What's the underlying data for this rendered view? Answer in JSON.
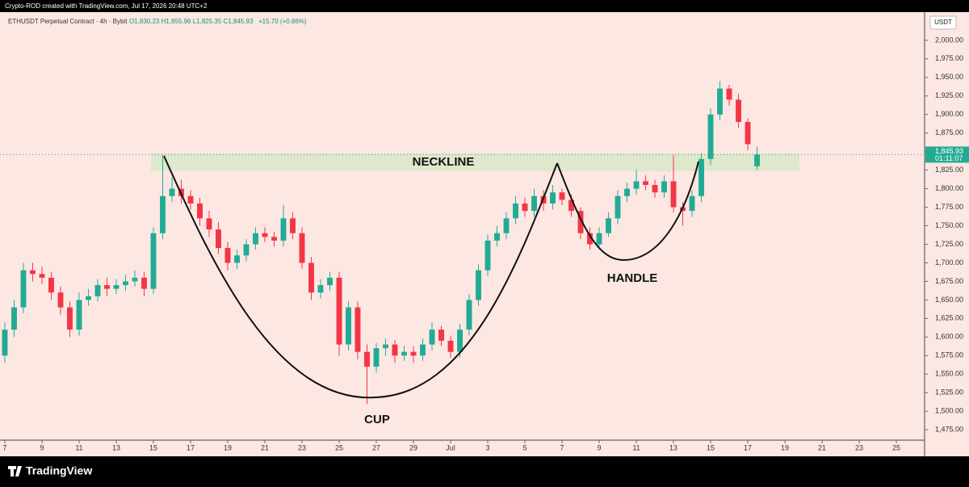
{
  "header": "Crypto-ROD created with TradingView.com, Jul 17, 2026 20:48 UTC+2",
  "footer_logo": "TradingView",
  "chart_data": {
    "type": "candlestick",
    "title": "ETHUSDT Perpetual Contract · 4h · Bybit",
    "ohlc_label": "O1,830.23 H1,855.96 L1,825.35 C1,845.93",
    "change_label": "+15.70 (+0.86%)",
    "currency": "USDT",
    "last_price_label": "1,845.93",
    "countdown": "01:11:07",
    "annotations": [
      "NECKLINE",
      "CUP",
      "HANDLE"
    ],
    "up_color": "#22ab94",
    "down_color": "#f23645",
    "xlim": [
      -0.26,
      49.52
    ],
    "xticks": [
      {
        "value": 0,
        "label": "7"
      },
      {
        "value": 2,
        "label": "9"
      },
      {
        "value": 4,
        "label": "11"
      },
      {
        "value": 6,
        "label": "13"
      },
      {
        "value": 8,
        "label": "15"
      },
      {
        "value": 10,
        "label": "17"
      },
      {
        "value": 12,
        "label": "19"
      },
      {
        "value": 14,
        "label": "21"
      },
      {
        "value": 16,
        "label": "23"
      },
      {
        "value": 18,
        "label": "25"
      },
      {
        "value": 20,
        "label": "27"
      },
      {
        "value": 22,
        "label": "29"
      },
      {
        "value": 24,
        "label": "Jul"
      },
      {
        "value": 26,
        "label": "3"
      },
      {
        "value": 28,
        "label": "5"
      },
      {
        "value": 30,
        "label": "7"
      },
      {
        "value": 32,
        "label": "9"
      },
      {
        "value": 34,
        "label": "11"
      },
      {
        "value": 36,
        "label": "13"
      },
      {
        "value": 38,
        "label": "15"
      },
      {
        "value": 40,
        "label": "17"
      },
      {
        "value": 42,
        "label": "19"
      },
      {
        "value": 44,
        "label": "21"
      },
      {
        "value": 46,
        "label": "23"
      },
      {
        "value": 48,
        "label": "25"
      }
    ],
    "ylim": [
      1461,
      2038
    ],
    "yticks": [
      {
        "value": 1475,
        "label": "1,475.00"
      },
      {
        "value": 1500,
        "label": "1,500.00"
      },
      {
        "value": 1525,
        "label": "1,525.00"
      },
      {
        "value": 1550,
        "label": "1,550.00"
      },
      {
        "value": 1575,
        "label": "1,575.00"
      },
      {
        "value": 1600,
        "label": "1,600.00"
      },
      {
        "value": 1625,
        "label": "1,625.00"
      },
      {
        "value": 1650,
        "label": "1,650.00"
      },
      {
        "value": 1675,
        "label": "1,675.00"
      },
      {
        "value": 1700,
        "label": "1,700.00"
      },
      {
        "value": 1725,
        "label": "1,725.00"
      },
      {
        "value": 1750,
        "label": "1,750.00"
      },
      {
        "value": 1775,
        "label": "1,775.00"
      },
      {
        "value": 1800,
        "label": "1,800.00"
      },
      {
        "value": 1825,
        "label": "1,825.00"
      },
      {
        "value": 1850,
        "label": "1,850.00"
      },
      {
        "value": 1875,
        "label": "1,875.00"
      },
      {
        "value": 1900,
        "label": "1,900.00"
      },
      {
        "value": 1925,
        "label": "1,925.00"
      },
      {
        "value": 1950,
        "label": "1,950.00"
      },
      {
        "value": 1975,
        "label": "1,975.00"
      },
      {
        "value": 2000,
        "label": "2,000.00"
      }
    ],
    "x": [
      0,
      0.5,
      1,
      1.5,
      2,
      2.5,
      3,
      3.5,
      4,
      4.5,
      5,
      5.5,
      6,
      6.5,
      7,
      7.5,
      8,
      8.5,
      9,
      9.5,
      10,
      10.5,
      11,
      11.5,
      12,
      12.5,
      13,
      13.5,
      14,
      14.5,
      15,
      15.5,
      16,
      16.5,
      17,
      17.5,
      18,
      18.5,
      19,
      19.5,
      20,
      20.5,
      21,
      21.5,
      22,
      22.5,
      23,
      23.5,
      24,
      24.5,
      25,
      25.5,
      26,
      26.5,
      27,
      27.5,
      28,
      28.5,
      29,
      29.5,
      30,
      30.5,
      31,
      31.5,
      32,
      32.5,
      33,
      33.5,
      34,
      34.5,
      35,
      35.5,
      36,
      36.5,
      37,
      37.5,
      38,
      38.5,
      39,
      39.5,
      40,
      40.5
    ],
    "open": [
      1575,
      1610,
      1640,
      1690,
      1685,
      1680,
      1660,
      1640,
      1610,
      1650,
      1655,
      1670,
      1665,
      1670,
      1675,
      1680,
      1665,
      1740,
      1790,
      1800,
      1790,
      1780,
      1760,
      1745,
      1720,
      1700,
      1710,
      1725,
      1740,
      1735,
      1730,
      1760,
      1740,
      1700,
      1660,
      1670,
      1680,
      1590,
      1640,
      1580,
      1560,
      1585,
      1590,
      1575,
      1580,
      1575,
      1590,
      1610,
      1595,
      1580,
      1610,
      1650,
      1690,
      1730,
      1740,
      1760,
      1780,
      1770,
      1790,
      1780,
      1795,
      1785,
      1770,
      1740,
      1725,
      1740,
      1760,
      1790,
      1800,
      1810,
      1805,
      1795,
      1810,
      1775,
      1770,
      1790,
      1840,
      1900,
      1935,
      1920,
      1890,
      1830.23
    ],
    "high": [
      1620,
      1650,
      1700,
      1700,
      1695,
      1688,
      1668,
      1648,
      1660,
      1665,
      1678,
      1680,
      1678,
      1684,
      1690,
      1688,
      1748,
      1845,
      1815,
      1812,
      1798,
      1788,
      1770,
      1755,
      1728,
      1718,
      1732,
      1748,
      1748,
      1742,
      1778,
      1768,
      1748,
      1708,
      1678,
      1688,
      1688,
      1648,
      1648,
      1590,
      1592,
      1598,
      1596,
      1588,
      1588,
      1598,
      1620,
      1615,
      1602,
      1618,
      1658,
      1698,
      1738,
      1750,
      1768,
      1790,
      1788,
      1800,
      1798,
      1805,
      1800,
      1792,
      1775,
      1748,
      1748,
      1768,
      1798,
      1808,
      1825,
      1818,
      1812,
      1818,
      1845,
      1782,
      1798,
      1848,
      1908,
      1945,
      1940,
      1928,
      1895,
      1855.96
    ],
    "low": [
      1565,
      1600,
      1632,
      1675,
      1672,
      1650,
      1630,
      1600,
      1602,
      1642,
      1648,
      1655,
      1658,
      1662,
      1668,
      1655,
      1658,
      1732,
      1782,
      1780,
      1772,
      1750,
      1735,
      1712,
      1690,
      1692,
      1702,
      1718,
      1728,
      1722,
      1722,
      1732,
      1692,
      1650,
      1652,
      1662,
      1575,
      1582,
      1570,
      1510,
      1552,
      1575,
      1565,
      1568,
      1565,
      1568,
      1582,
      1588,
      1572,
      1572,
      1602,
      1642,
      1682,
      1722,
      1732,
      1752,
      1762,
      1762,
      1770,
      1772,
      1778,
      1762,
      1732,
      1718,
      1718,
      1735,
      1752,
      1782,
      1792,
      1798,
      1788,
      1788,
      1768,
      1750,
      1762,
      1782,
      1832,
      1892,
      1912,
      1882,
      1852,
      1825.35
    ],
    "close": [
      1610,
      1640,
      1690,
      1685,
      1680,
      1660,
      1640,
      1610,
      1650,
      1655,
      1670,
      1665,
      1670,
      1675,
      1680,
      1665,
      1740,
      1790,
      1800,
      1790,
      1780,
      1760,
      1745,
      1720,
      1700,
      1710,
      1725,
      1740,
      1735,
      1730,
      1760,
      1740,
      1700,
      1660,
      1670,
      1680,
      1590,
      1640,
      1580,
      1560,
      1585,
      1590,
      1575,
      1580,
      1575,
      1590,
      1610,
      1595,
      1580,
      1610,
      1650,
      1690,
      1730,
      1740,
      1760,
      1780,
      1770,
      1790,
      1780,
      1795,
      1785,
      1770,
      1740,
      1725,
      1740,
      1760,
      1790,
      1800,
      1810,
      1805,
      1795,
      1810,
      1775,
      1770,
      1790,
      1840,
      1900,
      1935,
      1920,
      1890,
      1860,
      1845.93
    ]
  }
}
